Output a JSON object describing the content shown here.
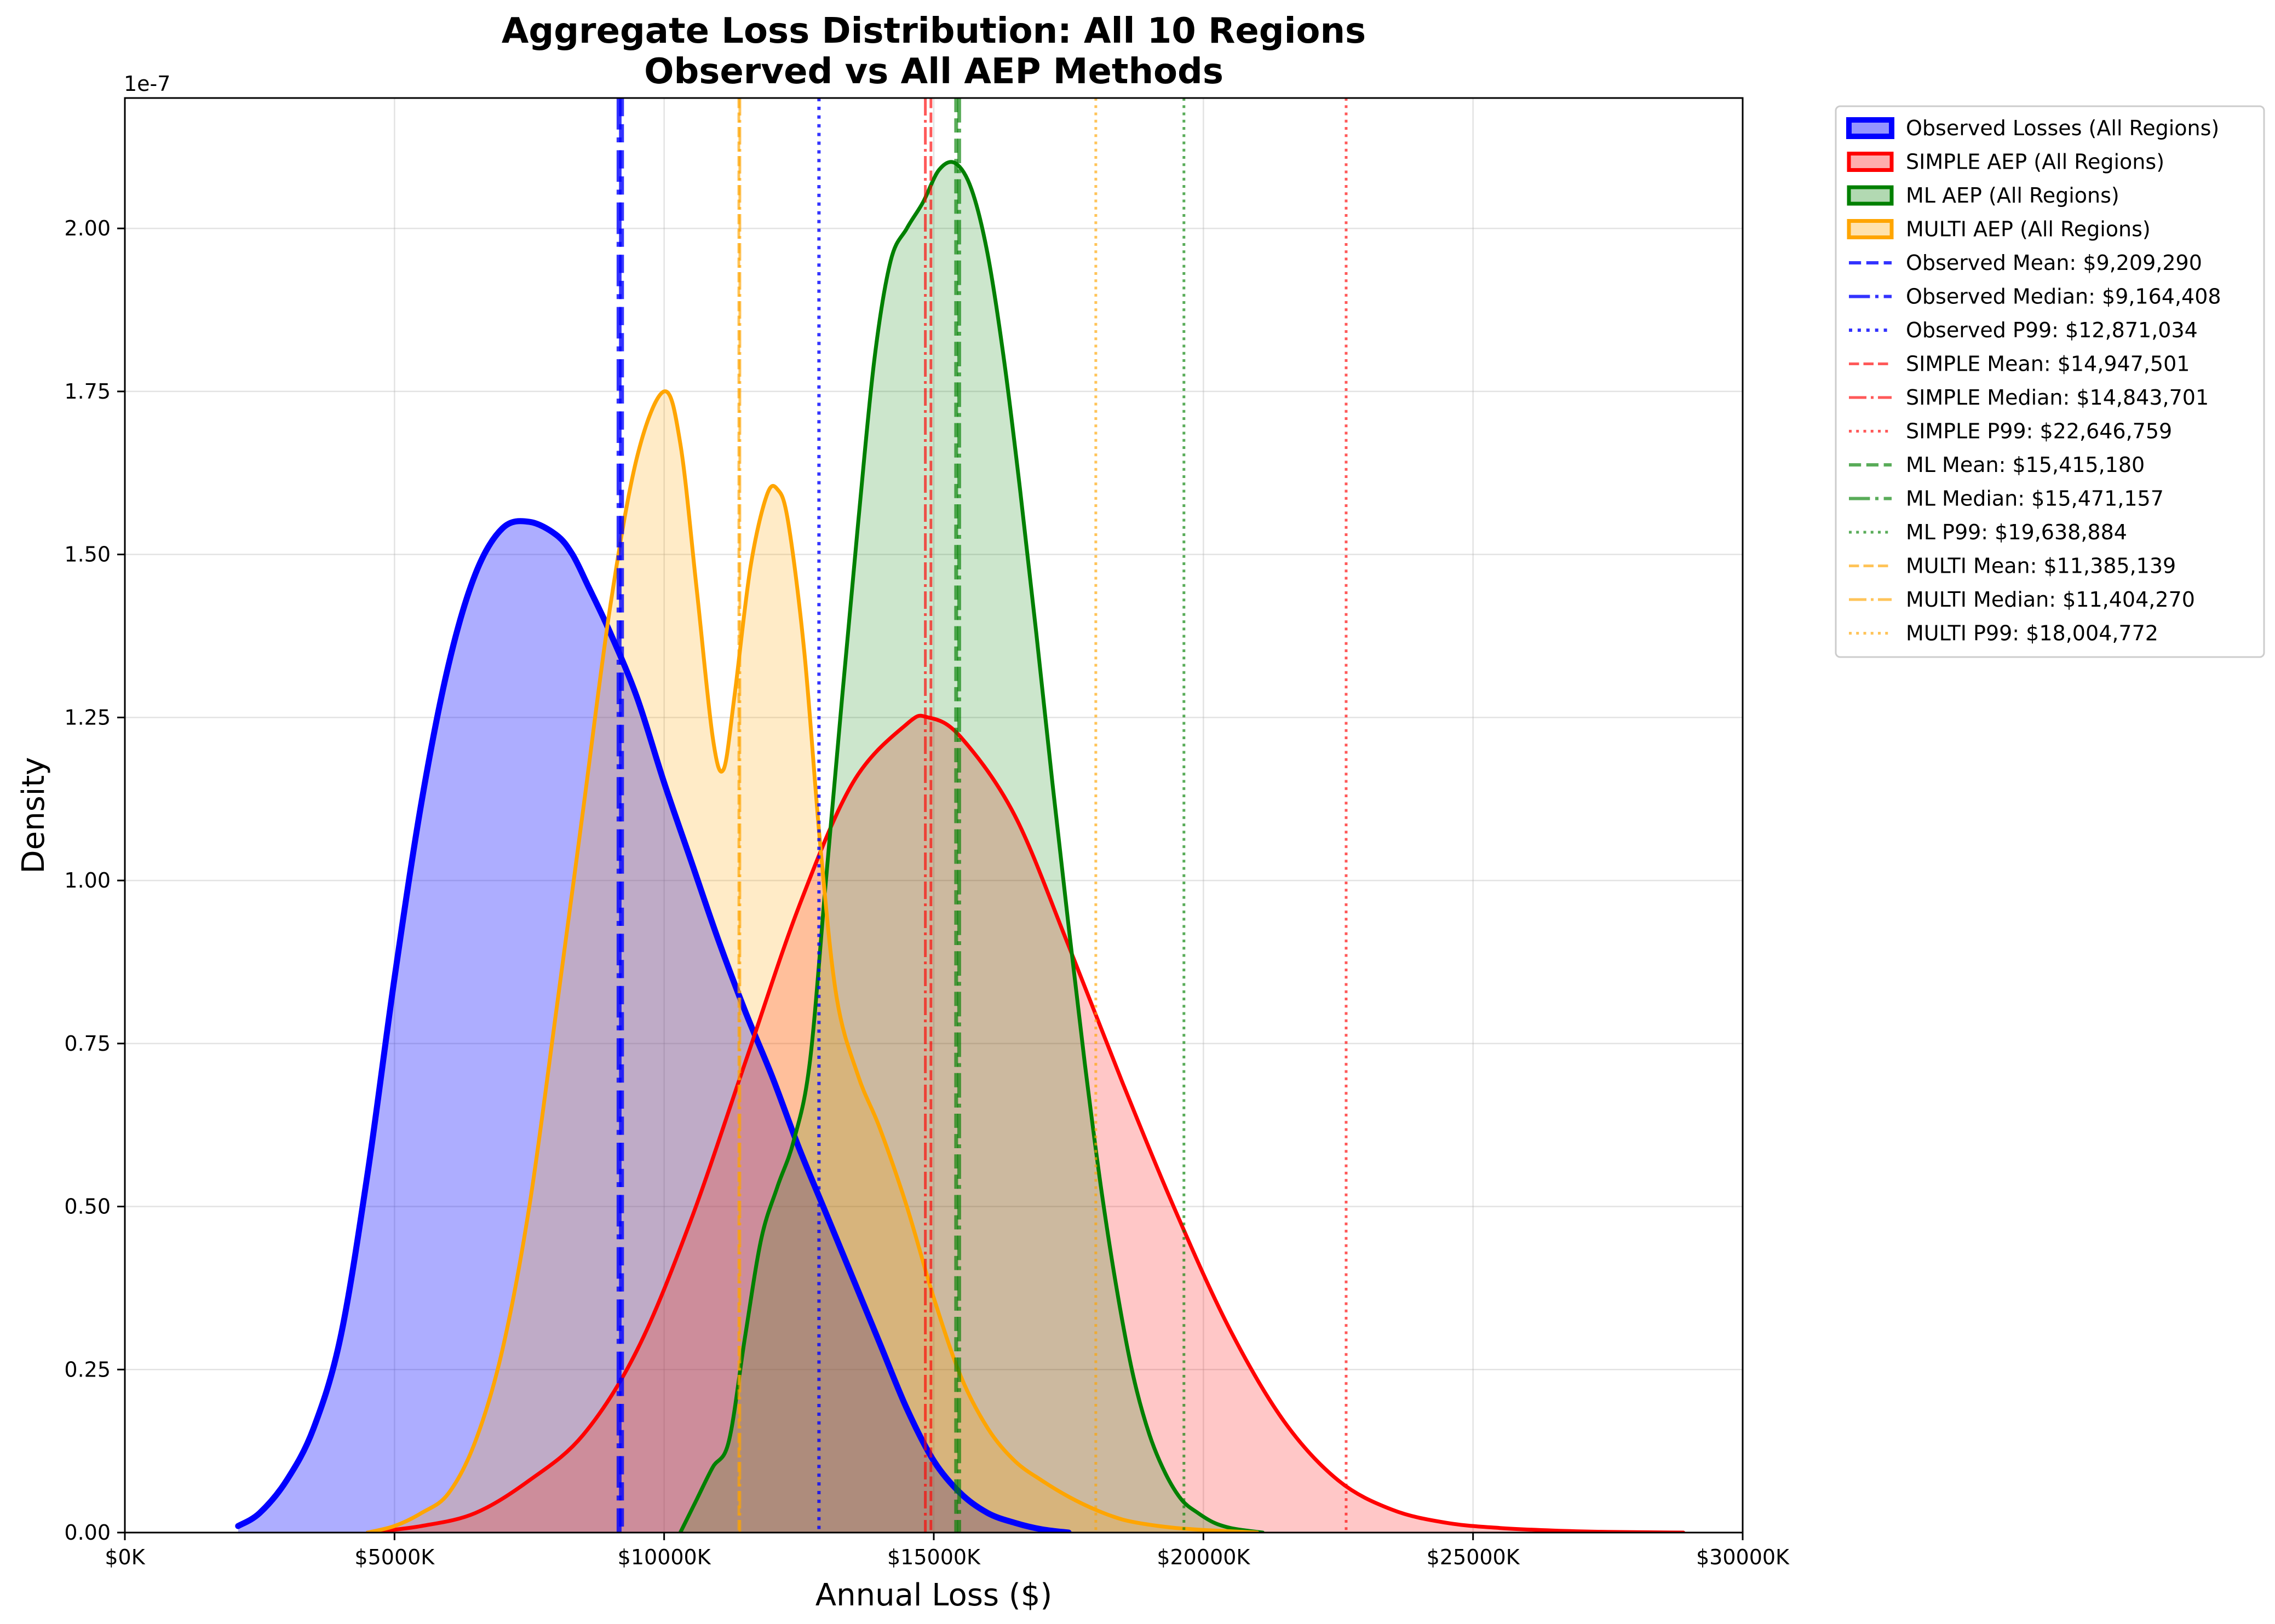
{
  "chart_data": {
    "type": "area",
    "title_line1": "Aggregate Loss Distribution: All 10 Regions",
    "title_line2": "Observed vs All AEP Methods",
    "xlabel": "Annual Loss ($)",
    "ylabel": "Density",
    "y_offset_label": "1e-7",
    "xlim": [
      0,
      30000000
    ],
    "ylim": [
      0,
      2.2
    ],
    "x_ticks": [
      0,
      5000000,
      10000000,
      15000000,
      20000000,
      25000000,
      30000000
    ],
    "x_tick_labels": [
      "$0K",
      "$5000K",
      "$10000K",
      "$15000K",
      "$20000K",
      "$25000K",
      "$30000K"
    ],
    "y_ticks": [
      0,
      0.25,
      0.5,
      0.75,
      1.0,
      1.25,
      1.5,
      1.75,
      2.0
    ],
    "y_tick_labels": [
      "0.00",
      "0.25",
      "0.50",
      "0.75",
      "1.00",
      "1.25",
      "1.50",
      "1.75",
      "2.00"
    ],
    "grid": true,
    "legend_position": "outside-right",
    "series": [
      {
        "name": "Observed Losses (All Regions)",
        "color": "#0000ff",
        "fill_opacity": 0.32,
        "line_width": 11,
        "x": [
          2100000,
          2500000,
          3000000,
          3500000,
          4000000,
          4500000,
          5000000,
          5500000,
          6000000,
          6500000,
          7000000,
          7500000,
          8000000,
          8300000,
          8600000,
          9000000,
          9500000,
          10000000,
          10500000,
          11000000,
          11500000,
          12000000,
          12500000,
          13000000,
          13500000,
          14000000,
          14500000,
          15000000,
          15500000,
          16000000,
          16500000,
          17000000,
          17500000
        ],
        "y": [
          0.01,
          0.03,
          0.08,
          0.16,
          0.3,
          0.55,
          0.85,
          1.12,
          1.33,
          1.47,
          1.54,
          1.55,
          1.53,
          1.5,
          1.45,
          1.38,
          1.28,
          1.15,
          1.03,
          0.91,
          0.8,
          0.7,
          0.59,
          0.49,
          0.39,
          0.29,
          0.19,
          0.11,
          0.06,
          0.03,
          0.015,
          0.005,
          0.0
        ]
      },
      {
        "name": "SIMPLE AEP (All Regions)",
        "color": "#ff0000",
        "fill_opacity": 0.22,
        "line_width": 7,
        "x": [
          4500000,
          5500000,
          6500000,
          7500000,
          8500000,
          9500000,
          10500000,
          11500000,
          12500000,
          13500000,
          14500000,
          14900000,
          15500000,
          16500000,
          17500000,
          18500000,
          19500000,
          20500000,
          21500000,
          22500000,
          23500000,
          24500000,
          25500000,
          26500000,
          27500000,
          28900000
        ],
        "y": [
          0.0,
          0.01,
          0.03,
          0.08,
          0.15,
          0.28,
          0.48,
          0.72,
          0.96,
          1.15,
          1.24,
          1.25,
          1.22,
          1.1,
          0.9,
          0.69,
          0.49,
          0.31,
          0.17,
          0.08,
          0.035,
          0.015,
          0.007,
          0.003,
          0.001,
          0.0
        ]
      },
      {
        "name": "ML AEP (All Regions)",
        "color": "#008000",
        "fill_opacity": 0.2,
        "line_width": 7,
        "x": [
          10300000,
          10600000,
          10900000,
          11200000,
          11500000,
          11800000,
          12100000,
          12400000,
          12700000,
          13000000,
          13300000,
          13600000,
          13900000,
          14200000,
          14500000,
          14800000,
          15100000,
          15400000,
          15700000,
          16000000,
          16300000,
          16600000,
          16900000,
          17200000,
          17500000,
          17800000,
          18100000,
          18400000,
          18700000,
          19000000,
          19300000,
          19600000,
          19900000,
          20200000,
          20500000,
          20800000,
          21100000
        ],
        "y": [
          0.0,
          0.05,
          0.1,
          0.14,
          0.3,
          0.45,
          0.53,
          0.6,
          0.72,
          1.0,
          1.28,
          1.55,
          1.8,
          1.95,
          2.0,
          2.04,
          2.09,
          2.1,
          2.06,
          1.96,
          1.8,
          1.6,
          1.38,
          1.15,
          0.93,
          0.72,
          0.53,
          0.37,
          0.24,
          0.15,
          0.09,
          0.05,
          0.03,
          0.015,
          0.007,
          0.003,
          0.0
        ]
      },
      {
        "name": "MULTI AEP (All Regions)",
        "color": "#ffa500",
        "fill_opacity": 0.22,
        "line_width": 7,
        "x": [
          4500000,
          5000000,
          5500000,
          6000000,
          6500000,
          7000000,
          7500000,
          8000000,
          8500000,
          9000000,
          9500000,
          10000000,
          10300000,
          10600000,
          10900000,
          11100000,
          11300000,
          11600000,
          11900000,
          12100000,
          12300000,
          12600000,
          12900000,
          13200000,
          13600000,
          14000000,
          14500000,
          15000000,
          15500000,
          16000000,
          16500000,
          17000000,
          17500000,
          18000000,
          18500000,
          19000000,
          19500000,
          20000000,
          20500000,
          21000000
        ],
        "y": [
          0.0,
          0.01,
          0.03,
          0.06,
          0.14,
          0.28,
          0.5,
          0.8,
          1.11,
          1.42,
          1.65,
          1.75,
          1.67,
          1.45,
          1.22,
          1.17,
          1.28,
          1.48,
          1.59,
          1.6,
          1.55,
          1.35,
          1.05,
          0.82,
          0.7,
          0.62,
          0.5,
          0.36,
          0.24,
          0.16,
          0.11,
          0.08,
          0.055,
          0.035,
          0.02,
          0.012,
          0.007,
          0.004,
          0.002,
          0.0
        ]
      }
    ],
    "reference_lines": [
      {
        "label": "Observed Mean: $9,209,290",
        "x": 9209290,
        "color": "#0000ff",
        "style": "dashed",
        "width": 9,
        "opacity": 0.8
      },
      {
        "label": "Observed Median: $9,164,408",
        "x": 9164408,
        "color": "#0000ff",
        "style": "dashdot",
        "width": 9,
        "opacity": 0.8
      },
      {
        "label": "Observed P99: $12,871,034",
        "x": 12871034,
        "color": "#0000ff",
        "style": "dotted",
        "width": 6,
        "opacity": 0.8
      },
      {
        "label": "SIMPLE Mean: $14,947,501",
        "x": 14947501,
        "color": "#ff0000",
        "style": "dashed",
        "width": 5,
        "opacity": 0.65
      },
      {
        "label": "SIMPLE Median: $14,843,701",
        "x": 14843701,
        "color": "#ff0000",
        "style": "dashdot",
        "width": 5,
        "opacity": 0.65
      },
      {
        "label": "SIMPLE P99: $22,646,759",
        "x": 22646759,
        "color": "#ff0000",
        "style": "dotted",
        "width": 5,
        "opacity": 0.65
      },
      {
        "label": "ML Mean: $15,415,180",
        "x": 15415180,
        "color": "#008000",
        "style": "dashed",
        "width": 7,
        "opacity": 0.65
      },
      {
        "label": "ML Median: $15,471,157",
        "x": 15471157,
        "color": "#008000",
        "style": "dashdot",
        "width": 7,
        "opacity": 0.65
      },
      {
        "label": "ML P99: $19,638,884",
        "x": 19638884,
        "color": "#008000",
        "style": "dotted",
        "width": 5,
        "opacity": 0.65
      },
      {
        "label": "MULTI Mean: $11,385,139",
        "x": 11385139,
        "color": "#ffa500",
        "style": "dashed",
        "width": 5,
        "opacity": 0.65
      },
      {
        "label": "MULTI Median: $11,404,270",
        "x": 11404270,
        "color": "#ffa500",
        "style": "dashdot",
        "width": 5,
        "opacity": 0.65
      },
      {
        "label": "MULTI P99: $18,004,772",
        "x": 18004772,
        "color": "#ffa500",
        "style": "dotted",
        "width": 5,
        "opacity": 0.65
      }
    ]
  }
}
